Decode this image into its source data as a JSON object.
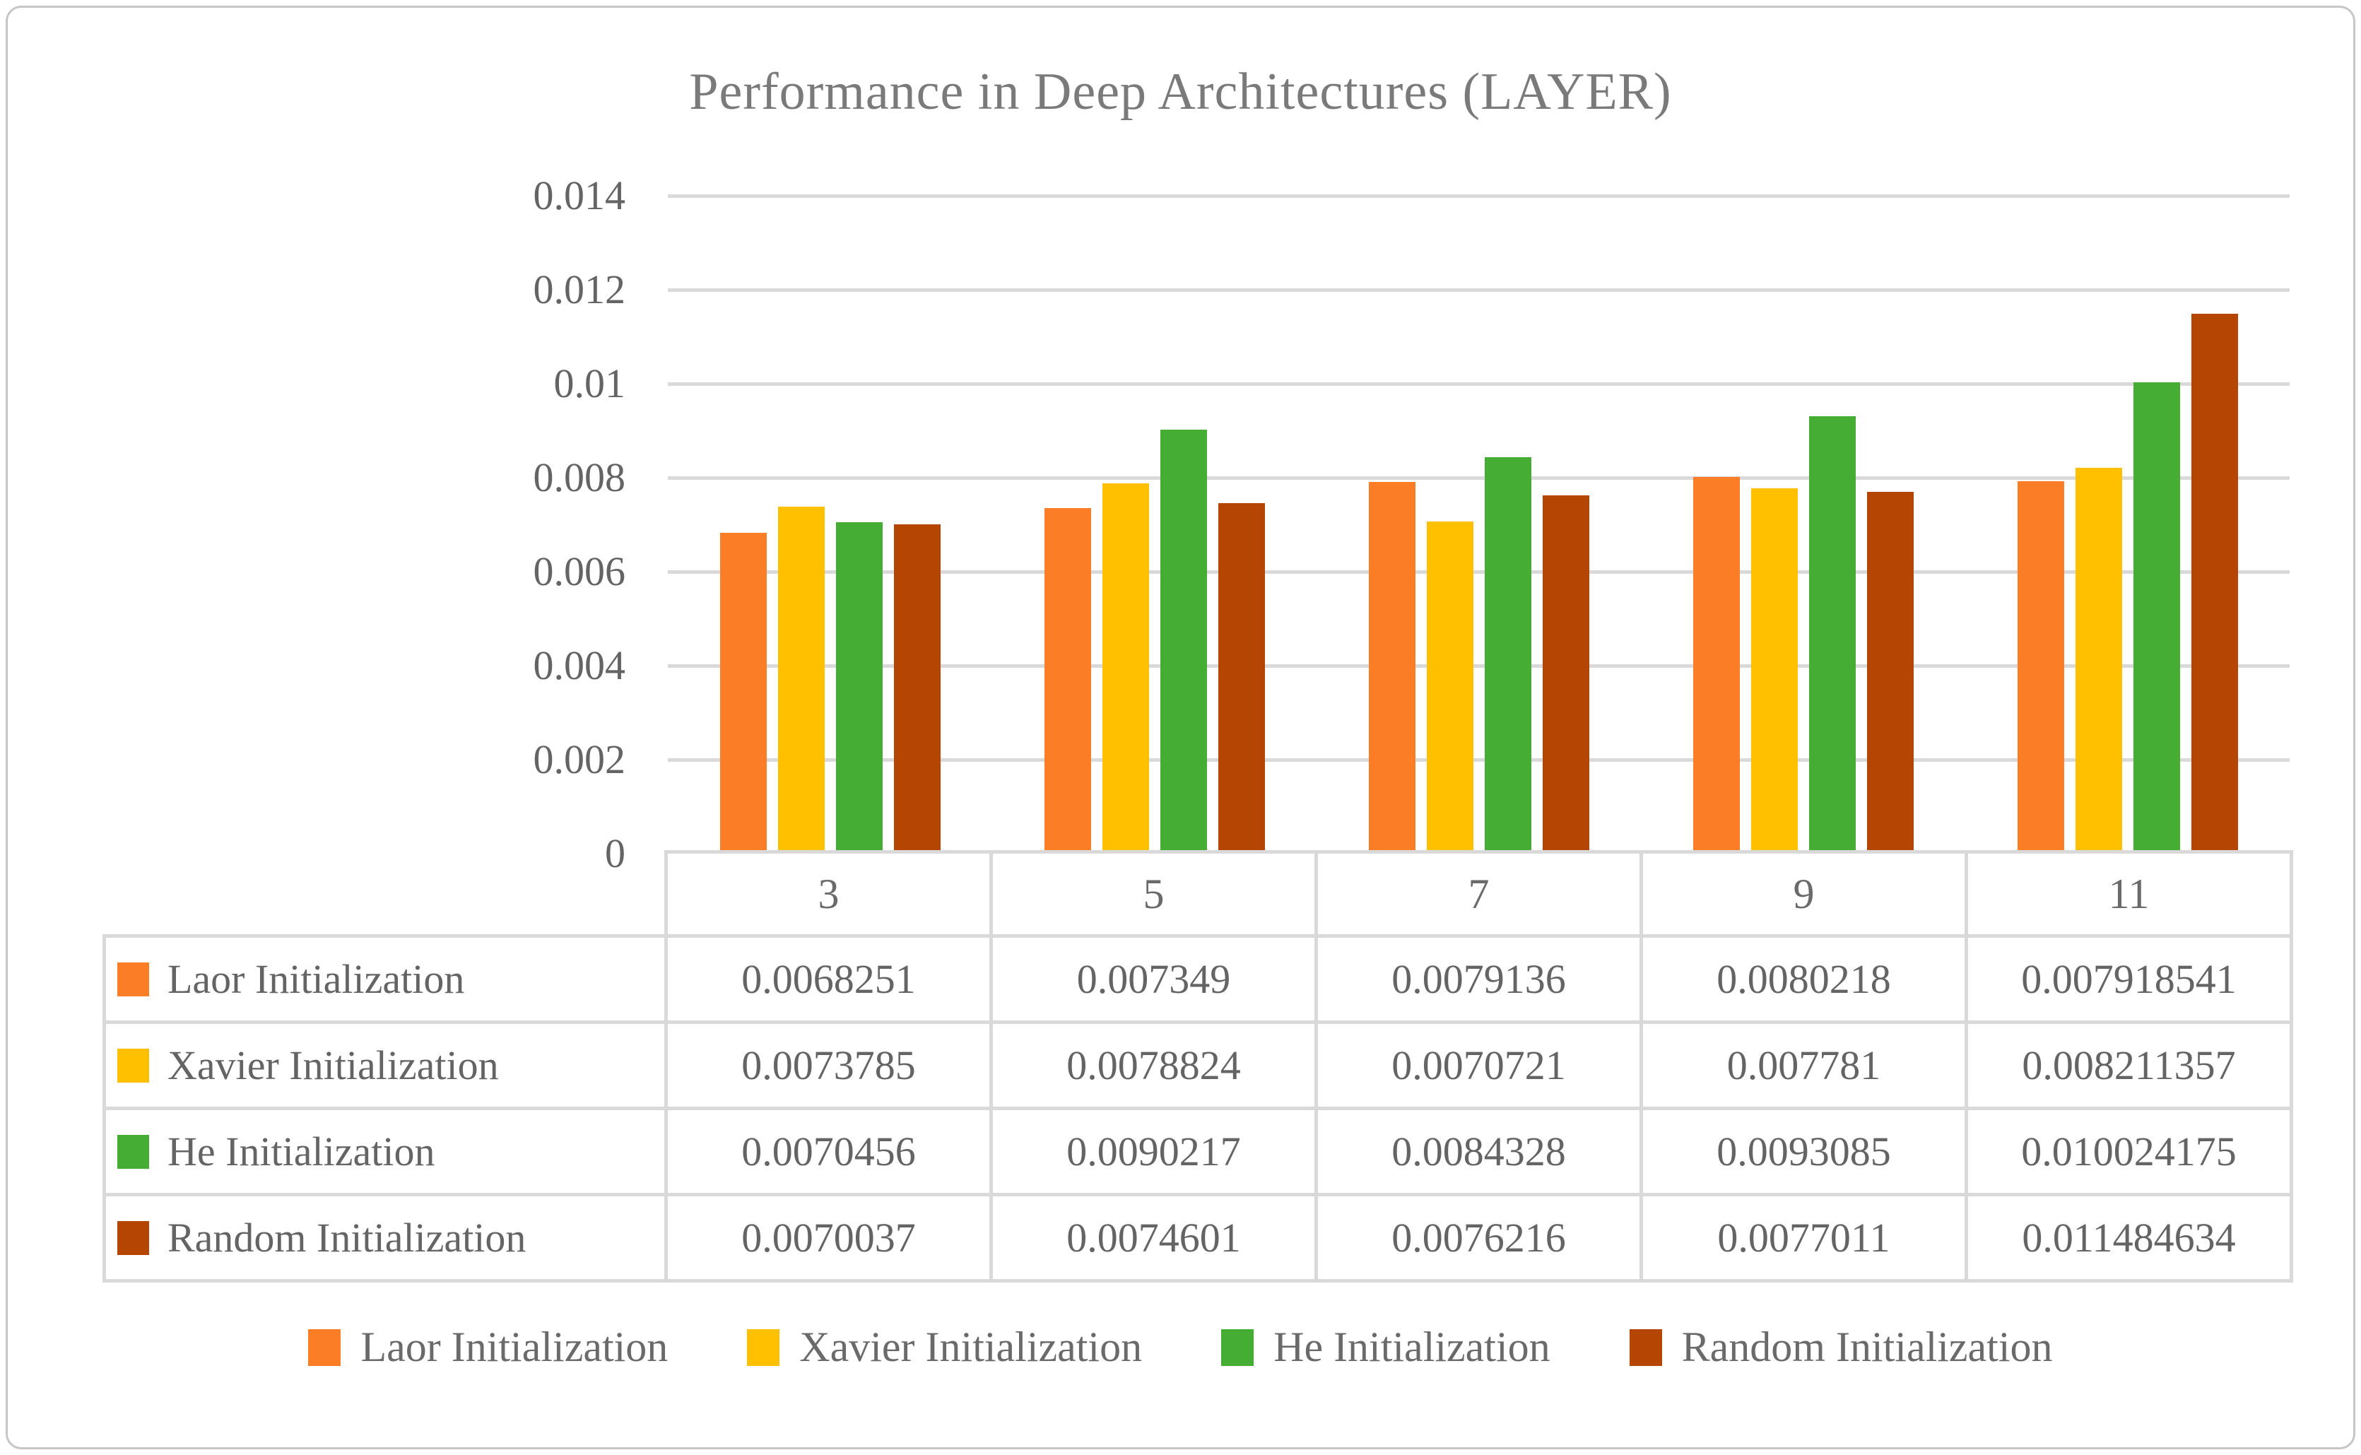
{
  "title": "Performance in Deep Architectures (LAYER)",
  "colors": {
    "grid": "#d9d9d9",
    "table_border": "#d9d9d9",
    "text": "#646464",
    "title_text": "#7a7a7a",
    "laor_orange": "#fb7d25",
    "xavier_yellow": "#ffc000",
    "he_green": "#45ac34",
    "random_brown": "#b44502"
  },
  "chart_data": {
    "type": "bar",
    "title": "Performance in Deep Architectures (LAYER)",
    "categories": [
      "3",
      "5",
      "7",
      "9",
      "11"
    ],
    "series": [
      {
        "name": "Laor Initialization",
        "color": "#fb7d25",
        "values": [
          0.0068251,
          0.007349,
          0.0079136,
          0.0080218,
          0.007918541
        ]
      },
      {
        "name": "Xavier Initialization",
        "color": "#ffc000",
        "values": [
          0.0073785,
          0.0078824,
          0.0070721,
          0.007781,
          0.008211357
        ]
      },
      {
        "name": "He Initialization",
        "color": "#45ac34",
        "values": [
          0.0070456,
          0.0090217,
          0.0084328,
          0.0093085,
          0.010024175
        ]
      },
      {
        "name": "Random Initialization",
        "color": "#b44502",
        "values": [
          0.0070037,
          0.0074601,
          0.0076216,
          0.0077011,
          0.011484634
        ]
      }
    ],
    "xlabel": "",
    "ylabel": "",
    "ylim": [
      0,
      0.014
    ],
    "yticks": [
      "0",
      "0.002",
      "0.004",
      "0.006",
      "0.008",
      "0.01",
      "0.012",
      "0.014"
    ],
    "grid": true,
    "legend_position": "bottom",
    "data_table_shown": true
  }
}
